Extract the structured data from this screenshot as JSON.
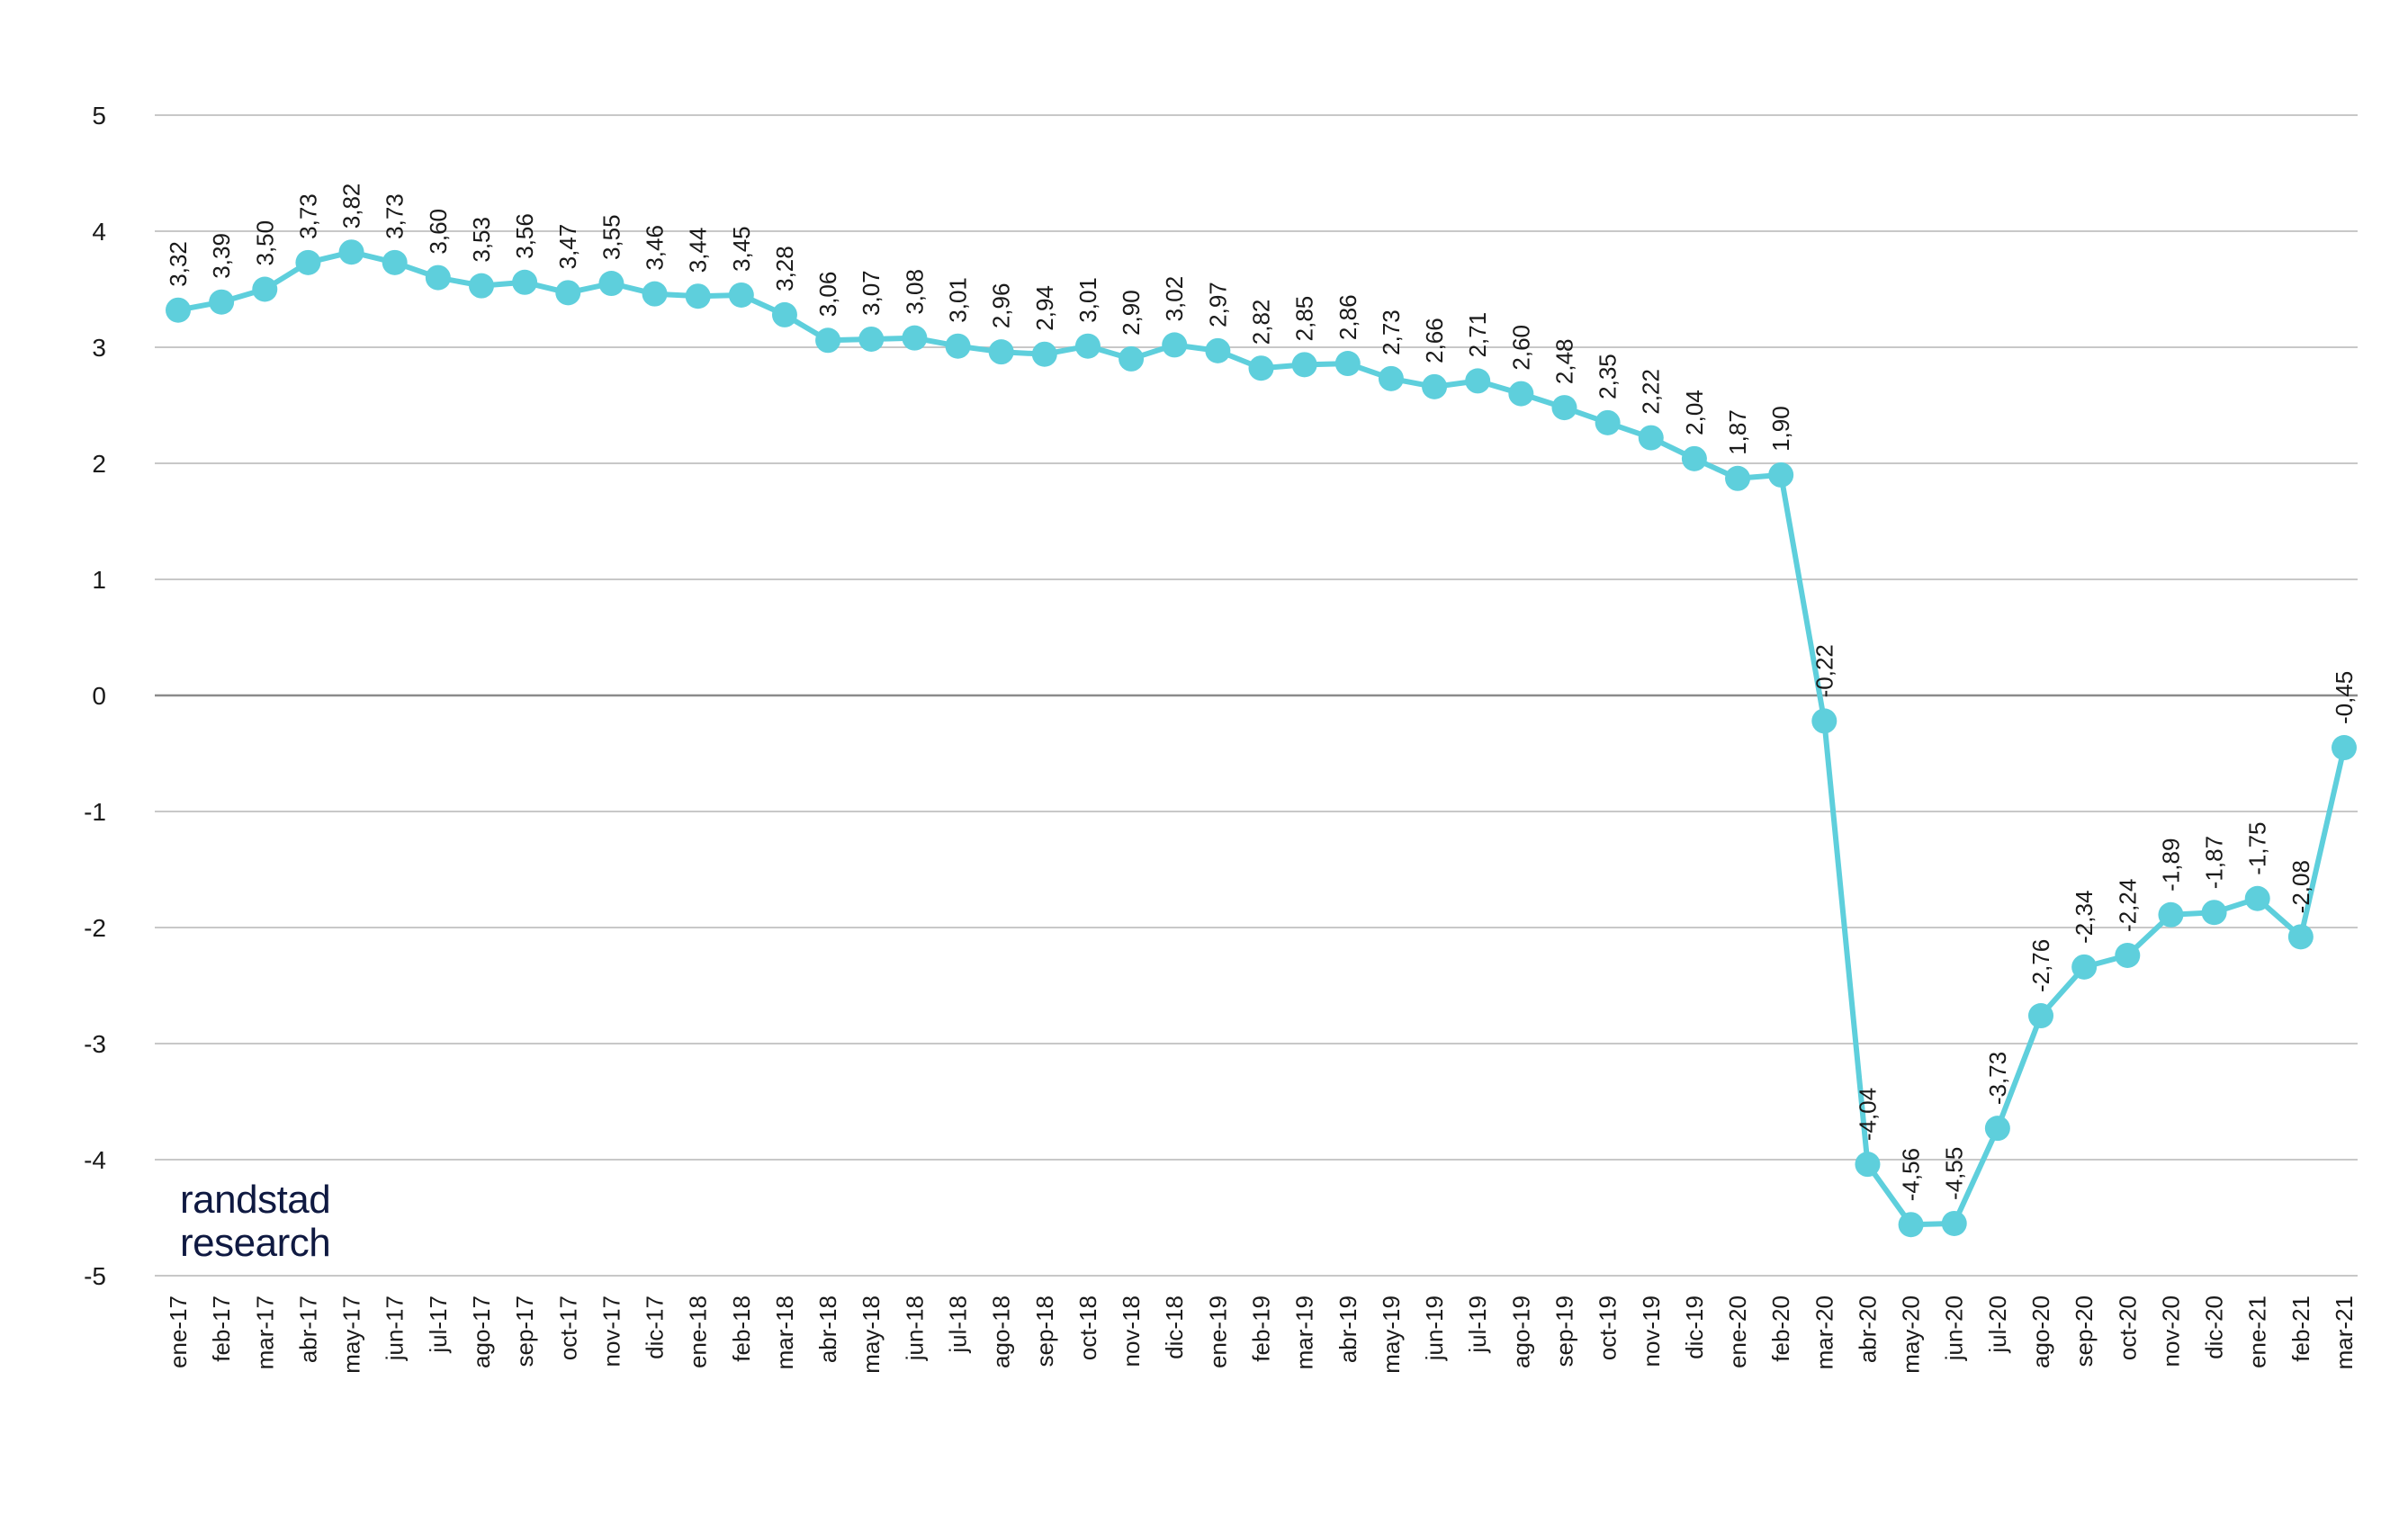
{
  "brand": {
    "line1": "randstad",
    "line2": "research",
    "color": "#0f1941"
  },
  "chart_data": {
    "type": "line",
    "title": "",
    "xlabel": "",
    "ylabel": "",
    "ylim": [
      -5,
      5
    ],
    "yticks": [
      "5",
      "4",
      "3",
      "2",
      "1",
      "0",
      "-1",
      "-2",
      "-3",
      "-4",
      "-5"
    ],
    "grid": true,
    "line_color": "#5ecfdc",
    "grid_color": "#c8c8c8",
    "zero_line_color": "#8a8a8a",
    "categories": [
      "ene-17",
      "feb-17",
      "mar-17",
      "abr-17",
      "may-17",
      "jun-17",
      "jul-17",
      "ago-17",
      "sep-17",
      "oct-17",
      "nov-17",
      "dic-17",
      "ene-18",
      "feb-18",
      "mar-18",
      "abr-18",
      "may-18",
      "jun-18",
      "jul-18",
      "ago-18",
      "sep-18",
      "oct-18",
      "nov-18",
      "dic-18",
      "ene-19",
      "feb-19",
      "mar-19",
      "abr-19",
      "may-19",
      "jun-19",
      "jul-19",
      "ago-19",
      "sep-19",
      "oct-19",
      "nov-19",
      "dic-19",
      "ene-20",
      "feb-20",
      "mar-20",
      "abr-20",
      "may-20",
      "jun-20",
      "jul-20",
      "ago-20",
      "sep-20",
      "oct-20",
      "nov-20",
      "dic-20",
      "ene-21",
      "feb-21",
      "mar-21"
    ],
    "series": [
      {
        "values": [
          3.32,
          3.39,
          3.5,
          3.73,
          3.82,
          3.73,
          3.6,
          3.53,
          3.56,
          3.47,
          3.55,
          3.46,
          3.44,
          3.45,
          3.28,
          3.06,
          3.07,
          3.08,
          3.01,
          2.96,
          2.94,
          3.01,
          2.9,
          3.02,
          2.97,
          2.82,
          2.85,
          2.86,
          2.73,
          2.66,
          2.71,
          2.6,
          2.48,
          2.35,
          2.22,
          2.04,
          1.87,
          1.9,
          -0.22,
          -4.04,
          -4.56,
          -4.55,
          -3.73,
          -2.76,
          -2.34,
          -2.24,
          -1.89,
          -1.87,
          -1.75,
          -2.08,
          -0.45
        ],
        "labels": [
          "3,32",
          "3,39",
          "3,50",
          "3,73",
          "3,82",
          "3,73",
          "3,60",
          "3,53",
          "3,56",
          "3,47",
          "3,55",
          "3,46",
          "3,44",
          "3,45",
          "3,28",
          "3,06",
          "3,07",
          "3,08",
          "3,01",
          "2,96",
          "2,94",
          "3,01",
          "2,90",
          "3,02",
          "2,97",
          "2,82",
          "2,85",
          "2,86",
          "2,73",
          "2,66",
          "2,71",
          "2,60",
          "2,48",
          "2,35",
          "2,22",
          "2,04",
          "1,87",
          "1,90",
          "-0,22",
          "-4,04",
          "-4,56",
          "-4,55",
          "-3,73",
          "-2,76",
          "-2,34",
          "-2,24",
          "-1,89",
          "-1,87",
          "-1,75",
          "-2,08",
          "-0,45"
        ]
      }
    ]
  }
}
